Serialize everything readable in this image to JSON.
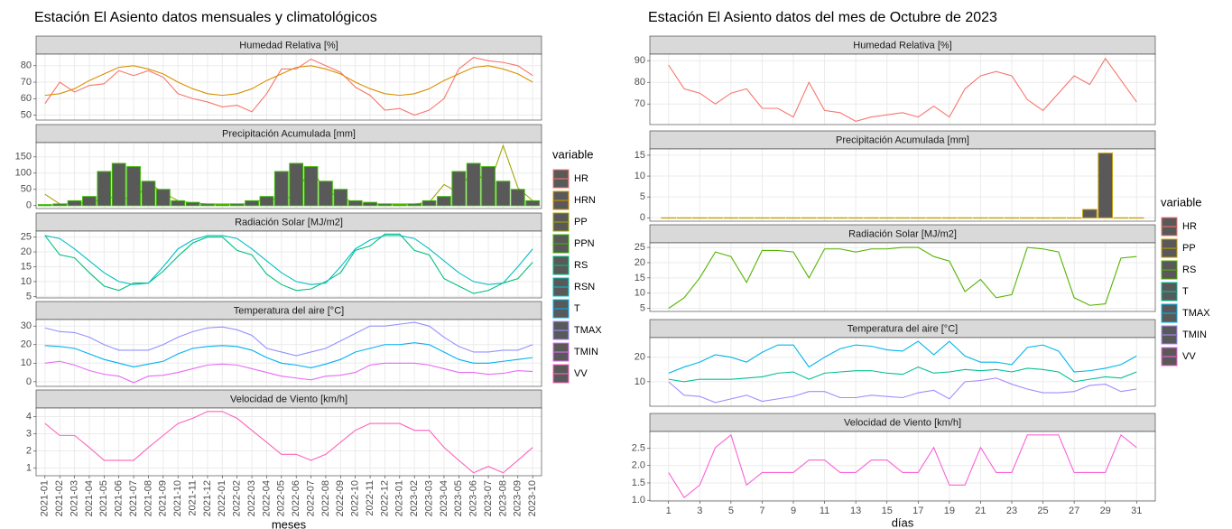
{
  "chart_data": [
    {
      "type": "line",
      "title": "Estación El Asiento datos mensuales y climatológicos",
      "xlabel": "meses",
      "categories": [
        "2021-01",
        "2021-02",
        "2021-03",
        "2021-04",
        "2021-05",
        "2021-06",
        "2021-07",
        "2021-08",
        "2021-09",
        "2021-10",
        "2021-11",
        "2021-12",
        "2022-01",
        "2022-02",
        "2022-03",
        "2022-04",
        "2022-05",
        "2022-06",
        "2022-07",
        "2022-08",
        "2022-09",
        "2022-10",
        "2022-11",
        "2022-12",
        "2023-01",
        "2023-02",
        "2023-03",
        "2023-04",
        "2023-05",
        "2023-06",
        "2023-07",
        "2023-08",
        "2023-09",
        "2023-10"
      ],
      "legend_title": "variable",
      "bar_fill": "#595959",
      "grid": true,
      "panels": [
        {
          "title": "Humedad Relativa [%]",
          "ylim": [
            47,
            87
          ],
          "yticks": [
            50,
            60,
            70,
            80
          ],
          "series": [
            {
              "name": "HR",
              "color": "#F8766D",
              "values": [
                57,
                70,
                64,
                68,
                69,
                77,
                74,
                77,
                73,
                63,
                60,
                58,
                55,
                56,
                52,
                63,
                78,
                78,
                84,
                80,
                76,
                67,
                62,
                53,
                54,
                50,
                53,
                60,
                78,
                85,
                83,
                82,
                80,
                74
              ]
            },
            {
              "name": "HRN",
              "color": "#D89000",
              "values": [
                62,
                63,
                66,
                71,
                75,
                79,
                80,
                78,
                75,
                70,
                66,
                63,
                62,
                63,
                66,
                71,
                75,
                79,
                80,
                78,
                75,
                70,
                66,
                63,
                62,
                63,
                66,
                71,
                75,
                79,
                80,
                78,
                75,
                70
              ]
            }
          ]
        },
        {
          "title": "Precipitación Acumulada [mm]",
          "ylim": [
            -9,
            194
          ],
          "yticks": [
            0,
            50,
            100,
            150
          ],
          "series": [
            {
              "name": "PP",
              "color": "#A3A500",
              "values": [
                35,
                5,
                5,
                10,
                20,
                30,
                15,
                70,
                40,
                15,
                8,
                5,
                5,
                5,
                5,
                25,
                15,
                35,
                120,
                40,
                30,
                5,
                5,
                5,
                5,
                5,
                10,
                65,
                40,
                120,
                55,
                185,
                55,
                15
              ]
            },
            {
              "name": "PPN",
              "color": "#39B600",
              "type": "bar",
              "values": [
                3,
                5,
                15,
                28,
                105,
                130,
                120,
                75,
                50,
                15,
                10,
                5,
                3,
                5,
                15,
                28,
                105,
                130,
                120,
                75,
                50,
                15,
                10,
                5,
                3,
                5,
                15,
                28,
                105,
                130,
                120,
                75,
                50,
                15
              ]
            }
          ]
        },
        {
          "title": "Radiación Solar [MJ/m2]",
          "ylim": [
            4.5,
            27
          ],
          "yticks": [
            5,
            10,
            15,
            20,
            25
          ],
          "series": [
            {
              "name": "RS",
              "color": "#00BF7D",
              "values": [
                25.5,
                19,
                18,
                13,
                8.5,
                7,
                9.5,
                9.5,
                13.5,
                18.5,
                23,
                25,
                25,
                20.5,
                19,
                12.5,
                9,
                7,
                7.5,
                10,
                13,
                20.5,
                22,
                26,
                26,
                20.5,
                19,
                11,
                8.5,
                6,
                7,
                9.5,
                11,
                16.5
              ]
            },
            {
              "name": "RSN",
              "color": "#00BFC4",
              "values": [
                25.5,
                24.5,
                21,
                17,
                13,
                10,
                9,
                9.5,
                15,
                21,
                24,
                25.5,
                25.5,
                24.5,
                21,
                17,
                13,
                10,
                9,
                9.5,
                15,
                21,
                24,
                25.5,
                25.5,
                24.5,
                21,
                17,
                13,
                10,
                9,
                9.5,
                15,
                21
              ]
            }
          ]
        },
        {
          "title": "Temperatura del aire [°C]",
          "ylim": [
            -2.5,
            33.5
          ],
          "yticks": [
            0,
            10,
            20,
            30
          ],
          "series": [
            {
              "name": "T",
              "color": "#00B0F6",
              "values": [
                19.5,
                19,
                18,
                15,
                12,
                10,
                8,
                9.5,
                11,
                15,
                18,
                19,
                19.5,
                19,
                17,
                13,
                10,
                9,
                7.5,
                9.5,
                12,
                16,
                18,
                20,
                20,
                21,
                20,
                16,
                12,
                10,
                10,
                11,
                12,
                13
              ]
            },
            {
              "name": "TMAX",
              "color": "#9590FF",
              "values": [
                29,
                27,
                26.5,
                24,
                20,
                17,
                17,
                17,
                20,
                24,
                27,
                29,
                29.5,
                28,
                25,
                18,
                16,
                14,
                16,
                18,
                22,
                26,
                30,
                30,
                31,
                32,
                30,
                24,
                19,
                16,
                16,
                17,
                17,
                20
              ]
            },
            {
              "name": "TMIN",
              "color": "#E76BF3",
              "values": [
                10,
                11,
                9,
                6,
                4,
                3,
                -0.5,
                3,
                3.5,
                5,
                7,
                9,
                9.5,
                9,
                7,
                5,
                3,
                2,
                1,
                3,
                3.5,
                5,
                9,
                10,
                10,
                10,
                9,
                7,
                5,
                5,
                4,
                4.5,
                6,
                5.5
              ]
            }
          ]
        },
        {
          "title": "Velocidad de Viento [km/h]",
          "ylim": [
            0.55,
            4.5
          ],
          "yticks": [
            1,
            2,
            3,
            4
          ],
          "series": [
            {
              "name": "VV",
              "color": "#FF62BC",
              "values": [
                3.6,
                2.9,
                2.9,
                2.2,
                1.45,
                1.45,
                1.45,
                2.2,
                2.9,
                3.6,
                3.9,
                4.3,
                4.3,
                3.9,
                3.2,
                2.5,
                1.8,
                1.8,
                1.45,
                1.8,
                2.5,
                3.2,
                3.6,
                3.6,
                3.6,
                3.2,
                3.2,
                2.2,
                1.45,
                0.72,
                1.1,
                0.72,
                1.45,
                2.2
              ]
            }
          ]
        }
      ]
    },
    {
      "type": "line",
      "title": "Estación El Asiento datos del mes de Octubre de 2023",
      "xlabel": "días",
      "x": [
        1,
        2,
        3,
        4,
        5,
        6,
        7,
        8,
        9,
        10,
        11,
        12,
        13,
        14,
        15,
        16,
        17,
        18,
        19,
        20,
        21,
        22,
        23,
        24,
        25,
        26,
        27,
        28,
        29,
        30,
        31
      ],
      "xlim": [
        -0.2,
        32.2
      ],
      "xticks": [
        1,
        3,
        5,
        7,
        9,
        11,
        13,
        15,
        17,
        19,
        21,
        23,
        25,
        27,
        29,
        31
      ],
      "legend_title": "variable",
      "bar_fill": "#595959",
      "grid": true,
      "panels": [
        {
          "title": "Humedad Relativa [%]",
          "ylim": [
            60.5,
            93
          ],
          "yticks": [
            70,
            80,
            90
          ],
          "series": [
            {
              "name": "HR",
              "color": "#F8766D",
              "values": [
                88,
                77,
                75,
                70,
                75,
                77,
                68,
                68,
                64,
                80,
                67,
                66,
                62,
                64,
                65,
                66,
                64,
                69,
                64,
                77,
                83,
                85,
                83,
                72,
                67,
                75,
                83,
                79,
                91,
                81,
                71
              ]
            }
          ]
        },
        {
          "title": "Precipitación Acumulada [mm]",
          "ylim": [
            -0.8,
            16.5
          ],
          "yticks": [
            0,
            5,
            10,
            15
          ],
          "series": [
            {
              "name": "PP",
              "color": "#C49A00",
              "type": "bar",
              "values": [
                0,
                0,
                0,
                0,
                0,
                0,
                0,
                0,
                0,
                0,
                0,
                0,
                0,
                0,
                0,
                0,
                0,
                0,
                0,
                0,
                0,
                0,
                0,
                0,
                0,
                0,
                0,
                2,
                15.5,
                0,
                0
              ]
            }
          ]
        },
        {
          "title": "Radiación Solar [MJ/m2]",
          "ylim": [
            4,
            26.5
          ],
          "yticks": [
            5,
            10,
            15,
            20,
            25
          ],
          "series": [
            {
              "name": "RS",
              "color": "#53B400",
              "values": [
                5,
                8.5,
                15,
                23.5,
                22,
                13.5,
                24,
                24,
                23.5,
                15,
                24.5,
                24.5,
                23.5,
                24.5,
                24.5,
                25,
                25,
                22,
                20.5,
                10.5,
                14.5,
                8.5,
                9.5,
                25,
                24.5,
                23.5,
                8.5,
                6,
                6.5,
                21.5,
                22
              ]
            }
          ]
        },
        {
          "title": "Temperatura del aire [°C]",
          "ylim": [
            0,
            28
          ],
          "yticks": [
            10,
            20
          ],
          "series": [
            {
              "name": "T",
              "color": "#00C094",
              "values": [
                11,
                10,
                11,
                11,
                11,
                11.5,
                12,
                13.5,
                14,
                11,
                13.5,
                14,
                14.5,
                14.5,
                13.5,
                13,
                16,
                13.5,
                14,
                15,
                14.5,
                15,
                14,
                15.5,
                15,
                14,
                10,
                11,
                12,
                11.5,
                14
              ]
            },
            {
              "name": "TMAX",
              "color": "#00B6EB",
              "values": [
                13.5,
                16,
                18,
                21,
                20,
                18,
                22,
                25,
                25,
                16,
                20,
                23.5,
                25,
                24.5,
                23,
                22.5,
                26.5,
                21,
                26.5,
                20.5,
                18,
                18,
                17,
                24,
                25,
                22.5,
                14,
                14.5,
                15.5,
                17,
                20.5
              ]
            },
            {
              "name": "TMIN",
              "color": "#A58AFF",
              "values": [
                10,
                4.5,
                4,
                1.5,
                3,
                4.5,
                2,
                3,
                4,
                6,
                6,
                3.5,
                3.5,
                4.5,
                4,
                3.5,
                5.5,
                6.5,
                3,
                10,
                10.5,
                11.5,
                9,
                7,
                5.5,
                5.5,
                6,
                8.5,
                9,
                6,
                7
              ]
            }
          ]
        },
        {
          "title": "Velocidad de Viento [km/h]",
          "ylim": [
            0.98,
            2.98
          ],
          "yticks": [
            {
              "value": 1,
              "label": "1.0"
            },
            1.5,
            {
              "value": 2,
              "label": "2.0"
            },
            2.5
          ],
          "series": [
            {
              "name": "VV",
              "color": "#FB61D7",
              "values": [
                1.8,
                1.08,
                1.44,
                2.52,
                2.88,
                1.44,
                1.8,
                1.8,
                1.8,
                2.16,
                2.16,
                1.8,
                1.8,
                2.16,
                2.16,
                1.8,
                1.8,
                2.52,
                1.44,
                1.44,
                2.52,
                1.8,
                1.8,
                2.88,
                2.88,
                2.88,
                1.8,
                1.8,
                1.8,
                2.88,
                2.52
              ]
            }
          ]
        }
      ]
    }
  ]
}
